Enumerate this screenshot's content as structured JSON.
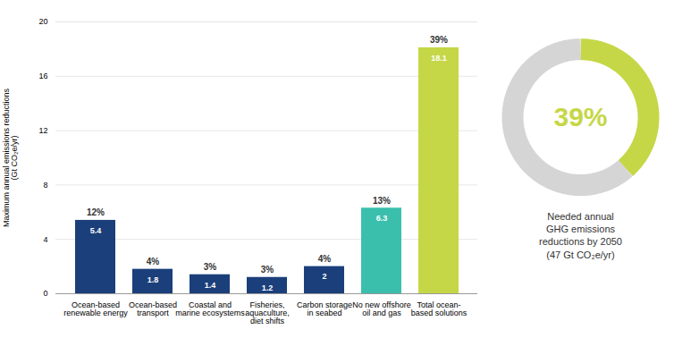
{
  "chart_data": [
    {
      "type": "bar",
      "categories": [
        "Ocean-based\nrenewable energy",
        "Ocean-based\ntransport",
        "Coastal and\nmarine ecosystems",
        "Fisheries,\naquaculture,\ndiet shifts",
        "Carbon storage\nin seabed",
        "No new offshore\noil and gas",
        "Total ocean-\nbased solutions"
      ],
      "values": [
        5.4,
        1.8,
        1.4,
        1.2,
        2.0,
        6.3,
        18.1
      ],
      "data_labels": true,
      "percentages": [
        "12%",
        "4%",
        "3%",
        "3%",
        "4%",
        "13%",
        "39%"
      ],
      "colors": [
        "#1b3f7a",
        "#1b3f7a",
        "#1b3f7a",
        "#1b3f7a",
        "#1b3f7a",
        "#3bbfad",
        "#c5d747"
      ],
      "ylabel": "Maximum annual emissions reductions\n(Gt CO₂e/yr)",
      "ylim": [
        0,
        20
      ],
      "yticks": [
        0,
        4,
        8,
        12,
        16,
        20
      ],
      "grid": true
    },
    {
      "type": "donut",
      "values": [
        18.1,
        28.9
      ],
      "colors": [
        "#c5d747",
        "#d5d5d5"
      ],
      "center_label": "39%",
      "label": "Needed annual\nGHG emissions\nreductions by 2050\n(47 Gt CO₂e/yr)"
    }
  ]
}
